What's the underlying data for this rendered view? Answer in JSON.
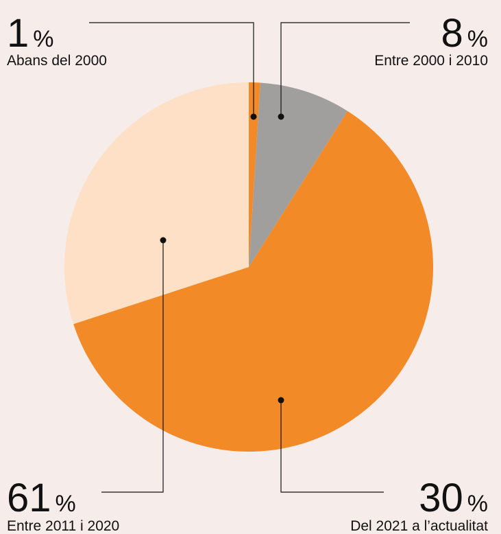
{
  "chart_data": {
    "type": "pie",
    "categories": [
      "Abans del 2000",
      "Entre 2000 i 2010",
      "Entre 2011 i 2020",
      "Del 2021 a l’actualitat"
    ],
    "values": [
      1,
      8,
      61,
      30
    ],
    "unit": "%",
    "colors": [
      "#f28a27",
      "#a09f9d",
      "#f28a27",
      "#fde0c5"
    ]
  }
}
